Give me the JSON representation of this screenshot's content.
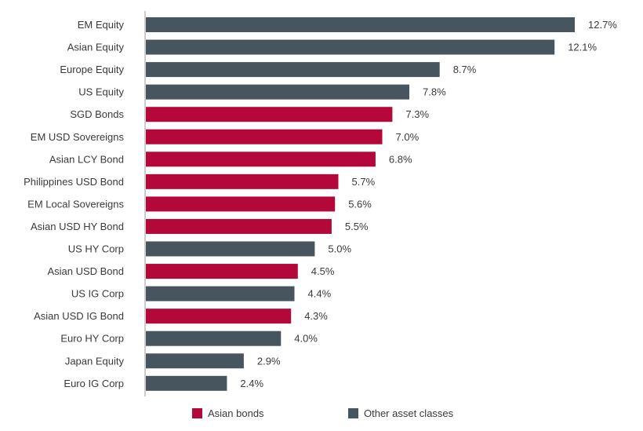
{
  "chart_data": {
    "type": "bar",
    "orientation": "horizontal",
    "categories": [
      "EM Equity",
      "Asian Equity",
      "Europe Equity",
      "US Equity",
      "SGD Bonds",
      "EM USD Sovereigns",
      "Asian LCY Bond",
      "Philippines USD Bond",
      "EM Local Sovereigns",
      "Asian USD HY Bond",
      "US HY Corp",
      "Asian USD Bond",
      "US IG Corp",
      "Asian USD IG Bond",
      "Euro HY Corp",
      "Japan Equity",
      "Euro IG Corp"
    ],
    "values": [
      12.7,
      12.1,
      8.7,
      7.8,
      7.3,
      7.0,
      6.8,
      5.7,
      5.6,
      5.5,
      5.0,
      4.5,
      4.4,
      4.3,
      4.0,
      2.9,
      2.4
    ],
    "value_labels": [
      "12.7%",
      "12.1%",
      "8.7%",
      "7.8%",
      "7.3%",
      "7.0%",
      "6.8%",
      "5.7%",
      "5.6%",
      "5.5%",
      "5.0%",
      "4.5%",
      "4.4%",
      "4.3%",
      "4.0%",
      "2.9%",
      "2.4%"
    ],
    "groups": [
      "other",
      "other",
      "other",
      "other",
      "asian",
      "asian",
      "asian",
      "asian",
      "asian",
      "asian",
      "other",
      "asian",
      "other",
      "asian",
      "other",
      "other",
      "other"
    ],
    "legend": [
      {
        "key": "asian",
        "label": "Asian bonds",
        "color": "#b4083a"
      },
      {
        "key": "other",
        "label": "Other asset classes",
        "color": "#47555e"
      }
    ],
    "legend_position": "bottom",
    "xlim": [
      0,
      14
    ],
    "grid": false,
    "title": "",
    "xlabel": "",
    "ylabel": ""
  }
}
